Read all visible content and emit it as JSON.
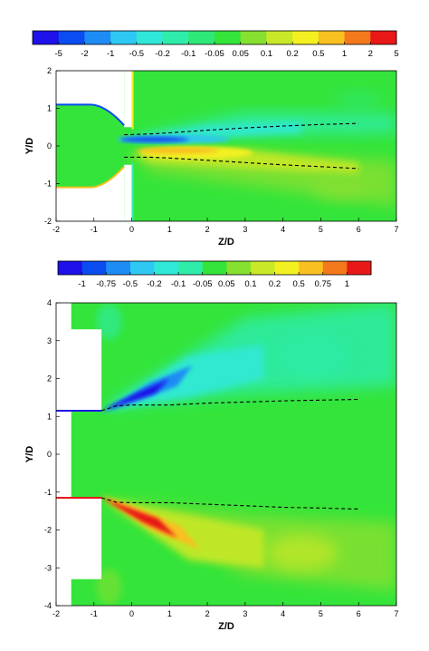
{
  "chart_data": [
    {
      "type": "heatmap",
      "xlabel": "Z/D",
      "ylabel": "Y/D",
      "xlim": [
        -2,
        7
      ],
      "ylim": [
        -2,
        2
      ],
      "xticks": [
        "-2",
        "-1",
        "0",
        "1",
        "2",
        "3",
        "4",
        "5",
        "6",
        "7"
      ],
      "yticks": [
        "-2",
        "-1",
        "0",
        "1",
        "2"
      ],
      "colorbar": {
        "labels": [
          "-5",
          "-2",
          "-1",
          "-0.5",
          "-0.2",
          "-0.1",
          "-0.05",
          "0.05",
          "0.1",
          "0.2",
          "0.5",
          "1",
          "2",
          "5"
        ],
        "colors": [
          "#1e10e8",
          "#0a4cf0",
          "#1e8cf5",
          "#2ec8f2",
          "#30e8d8",
          "#2fecaa",
          "#2ee878",
          "#34e43a",
          "#86e030",
          "#c8e828",
          "#f2f020",
          "#f8c020",
          "#f4781c",
          "#e81818"
        ]
      },
      "wall": {
        "nozzle_exit_z": -0.2,
        "nozzle_radius": 1.1,
        "plate_z": 0
      },
      "features": [
        {
          "sign": "negative",
          "z_from": -0.2,
          "z_to": 2.5,
          "y_center": 0.15,
          "peak": "-2"
        },
        {
          "sign": "positive",
          "z_from": -0.2,
          "z_to": 2.5,
          "y_center": -0.15,
          "peak": "2"
        }
      ],
      "trajectories": [
        {
          "name": "upper",
          "x": [
            -0.2,
            0.5,
            1,
            2,
            3,
            4,
            5,
            6
          ],
          "y": [
            0.3,
            0.32,
            0.35,
            0.42,
            0.48,
            0.53,
            0.57,
            0.6
          ]
        },
        {
          "name": "lower",
          "x": [
            -0.2,
            0.5,
            1,
            2,
            3,
            4,
            5,
            6
          ],
          "y": [
            -0.3,
            -0.3,
            -0.32,
            -0.38,
            -0.44,
            -0.5,
            -0.55,
            -0.6
          ]
        }
      ]
    },
    {
      "type": "heatmap",
      "xlabel": "Z/D",
      "ylabel": "Y/D",
      "xlim": [
        -2,
        7
      ],
      "ylim": [
        -4,
        4
      ],
      "xticks": [
        "-2",
        "-1",
        "0",
        "1",
        "2",
        "3",
        "4",
        "5",
        "6",
        "7"
      ],
      "yticks": [
        "-4",
        "-3",
        "-2",
        "-1",
        "0",
        "1",
        "2",
        "3",
        "4"
      ],
      "colorbar": {
        "labels": [
          "-1",
          "-0.75",
          "-0.5",
          "-0.2",
          "-0.1",
          "-0.05",
          "0.05",
          "0.1",
          "0.2",
          "0.5",
          "0.75",
          "1"
        ],
        "colors": [
          "#1e10e8",
          "#0a4cf0",
          "#1e8cf5",
          "#2ec8f2",
          "#30e8d8",
          "#2fecaa",
          "#34e43a",
          "#86e030",
          "#c8e828",
          "#f2f020",
          "#f8c020",
          "#f4781c",
          "#e81818"
        ]
      },
      "wall": {
        "nozzle_exit_z": -0.8,
        "nozzle_radius": 1.15,
        "plate_z_from": -1.6,
        "plate_z_to": -0.8,
        "plate_y": 3.3
      },
      "features": [
        {
          "sign": "negative",
          "z_from": -0.8,
          "z_to": 1.6,
          "y_from": 1.1,
          "y_to": 2.2,
          "peak": "-1"
        },
        {
          "sign": "positive",
          "z_from": -0.8,
          "z_to": 1.6,
          "y_from": -1.1,
          "y_to": -2.2,
          "peak": "1"
        }
      ],
      "trajectories": [
        {
          "name": "upper",
          "x": [
            -0.8,
            -0.4,
            0,
            1,
            2,
            3,
            4,
            5,
            6
          ],
          "y": [
            1.15,
            1.28,
            1.3,
            1.3,
            1.35,
            1.38,
            1.41,
            1.43,
            1.45
          ]
        },
        {
          "name": "lower",
          "x": [
            -0.8,
            -0.4,
            0,
            1,
            2,
            3,
            4,
            5,
            6
          ],
          "y": [
            -1.15,
            -1.27,
            -1.28,
            -1.28,
            -1.32,
            -1.36,
            -1.4,
            -1.42,
            -1.45
          ]
        }
      ]
    }
  ]
}
